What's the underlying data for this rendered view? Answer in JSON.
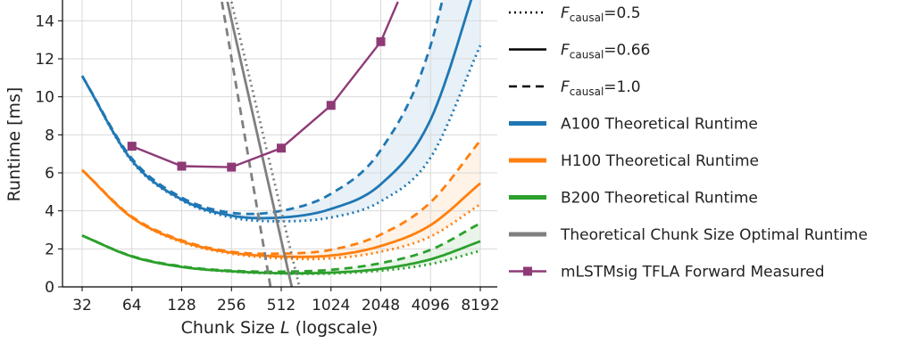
{
  "chart_data": {
    "type": "line",
    "xlabel_main": "Chunk Size ",
    "xlabel_italic": "L",
    "xlabel_tail": " (logscale)",
    "ylabel": "Runtime [ms]",
    "x_scale": "log2",
    "xlim": [
      32,
      8192
    ],
    "ylim": [
      0,
      15
    ],
    "x_ticks": [
      "32",
      "64",
      "128",
      "256",
      "512",
      "1024",
      "2048",
      "4096",
      "8192"
    ],
    "y_ticks": [
      "0",
      "2",
      "4",
      "6",
      "8",
      "10",
      "12",
      "14"
    ],
    "grid": true,
    "legend_position": "right, outside plot",
    "legend": {
      "causal_symbol": "F",
      "causal_subscript": "causal",
      "causal_entries": [
        {
          "value": "=0.5",
          "style": "dotted"
        },
        {
          "value": "=0.66",
          "style": "solid"
        },
        {
          "value": "=1.0",
          "style": "dashed"
        }
      ],
      "series_entries": [
        {
          "label": "A100 Theoretical Runtime",
          "color": "#1f77b4"
        },
        {
          "label": "H100 Theoretical Runtime",
          "color": "#ff7f0e"
        },
        {
          "label": "B200 Theoretical Runtime",
          "color": "#2ca02c"
        },
        {
          "label": "Theoretical Chunk Size Optimal Runtime",
          "color": "#7f7f7f"
        },
        {
          "label": "mLSTMsig TFLA Forward Measured",
          "color": "#8e3a76"
        }
      ]
    },
    "theoretical_series": [
      {
        "name": "A100 Theoretical Runtime",
        "color": "#1f77b4",
        "causal_0_5": {
          "x": [
            32,
            64,
            128,
            256,
            512,
            1024,
            2048,
            4096,
            8192
          ],
          "y": [
            11.1,
            6.6,
            4.55,
            3.65,
            3.45,
            3.65,
            4.5,
            6.8,
            12.7
          ]
        },
        "causal_0_66": {
          "x": [
            32,
            64,
            128,
            256,
            512,
            1024,
            2048,
            4096,
            8192
          ],
          "y": [
            11.1,
            6.65,
            4.6,
            3.75,
            3.65,
            4.1,
            5.4,
            8.8,
            16.6
          ]
        },
        "causal_1_0": {
          "x": [
            32,
            64,
            128,
            256,
            512,
            1024,
            2048,
            4096,
            8192
          ],
          "y": [
            11.1,
            6.75,
            4.7,
            3.9,
            4.0,
            4.9,
            7.2,
            12.7,
            24.6
          ]
        }
      },
      {
        "name": "H100 Theoretical Runtime",
        "color": "#ff7f0e",
        "causal_0_5": {
          "x": [
            32,
            64,
            128,
            256,
            512,
            1024,
            2048,
            4096,
            8192
          ],
          "y": [
            6.15,
            3.65,
            2.35,
            1.75,
            1.5,
            1.5,
            1.85,
            2.65,
            4.35
          ]
        },
        "causal_0_66": {
          "x": [
            32,
            64,
            128,
            256,
            512,
            1024,
            2048,
            4096,
            8192
          ],
          "y": [
            6.15,
            3.65,
            2.4,
            1.8,
            1.6,
            1.65,
            2.15,
            3.25,
            5.45
          ]
        },
        "causal_1_0": {
          "x": [
            32,
            64,
            128,
            256,
            512,
            1024,
            2048,
            4096,
            8192
          ],
          "y": [
            6.15,
            3.7,
            2.45,
            1.85,
            1.75,
            1.95,
            2.75,
            4.45,
            7.7
          ]
        }
      },
      {
        "name": "B200 Theoretical Runtime",
        "color": "#2ca02c",
        "causal_0_5": {
          "x": [
            32,
            64,
            128,
            256,
            512,
            1024,
            2048,
            4096,
            8192
          ],
          "y": [
            2.7,
            1.6,
            1.05,
            0.8,
            0.7,
            0.7,
            0.85,
            1.2,
            1.9
          ]
        },
        "causal_0_66": {
          "x": [
            32,
            64,
            128,
            256,
            512,
            1024,
            2048,
            4096,
            8192
          ],
          "y": [
            2.7,
            1.6,
            1.05,
            0.82,
            0.72,
            0.75,
            0.95,
            1.45,
            2.4
          ]
        },
        "causal_1_0": {
          "x": [
            32,
            64,
            128,
            256,
            512,
            1024,
            2048,
            4096,
            8192
          ],
          "y": [
            2.7,
            1.62,
            1.08,
            0.85,
            0.8,
            0.9,
            1.25,
            1.95,
            3.35
          ]
        }
      }
    ],
    "optimal_series": {
      "name": "Theoretical Chunk Size Optimal Runtime",
      "color": "#7f7f7f",
      "causal_0_5": {
        "x": [
          256,
          659
        ],
        "y": [
          15.0,
          0.0
        ]
      },
      "causal_0_66": {
        "x": [
          242,
          593
        ],
        "y": [
          15.0,
          0.0
        ]
      },
      "causal_1_0": {
        "x": [
          224,
          441
        ],
        "y": [
          15.0,
          0.0
        ]
      }
    },
    "measured_series": {
      "name": "mLSTMsig TFLA Forward Measured",
      "color": "#8e3a76",
      "x": [
        64,
        128,
        256,
        512,
        1024,
        2048,
        2600
      ],
      "y": [
        7.4,
        6.35,
        6.3,
        7.3,
        9.55,
        12.9,
        15.0
      ],
      "marker_count": 6
    }
  }
}
